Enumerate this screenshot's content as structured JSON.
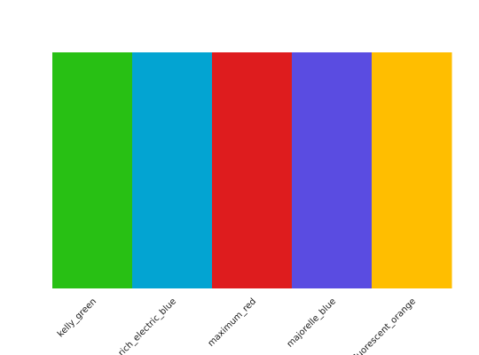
{
  "chart_data": {
    "type": "bar",
    "title": "",
    "xlabel": "",
    "ylabel": "",
    "categories": [
      "kelly_green",
      "rich_electric_blue",
      "maximum_red",
      "majorelle_blue",
      "fluorescent_orange"
    ],
    "values": [
      1,
      1,
      1,
      1,
      1
    ],
    "colors": [
      "#28c014",
      "#03a4d2",
      "#de1c1e",
      "#5a4ce1",
      "#ffbe00"
    ],
    "grid": false,
    "legend": "none"
  }
}
